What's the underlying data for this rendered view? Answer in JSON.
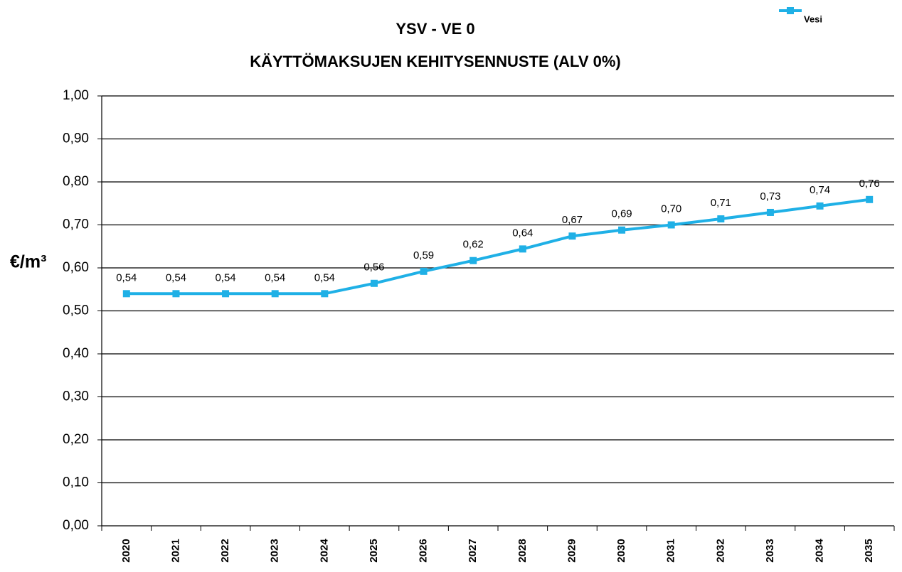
{
  "chart_data": {
    "type": "line",
    "title": "YSV - VE 0",
    "subtitle": "KÄYTTÖMAKSUJEN KEHITYSENNUSTE (ALV 0%)",
    "y_label": "€/m³",
    "categories": [
      "2020",
      "2021",
      "2022",
      "2023",
      "2024",
      "2025",
      "2026",
      "2027",
      "2028",
      "2029",
      "2030",
      "2031",
      "2032",
      "2033",
      "2034",
      "2035"
    ],
    "series": [
      {
        "name": "Vesi",
        "color": "#1fb0e6",
        "values": [
          0.54,
          0.54,
          0.54,
          0.54,
          0.54,
          0.564,
          0.592,
          0.617,
          0.644,
          0.674,
          0.688,
          0.7,
          0.714,
          0.729,
          0.744,
          0.759
        ],
        "value_labels": [
          "0,54",
          "0,54",
          "0,54",
          "0,54",
          "0,54",
          "0,56",
          "0,59",
          "0,62",
          "0,64",
          "0,67",
          "0,69",
          "0,70",
          "0,71",
          "0,73",
          "0,74",
          "0,76"
        ]
      }
    ],
    "ylim": [
      0,
      1
    ],
    "yticks": [
      {
        "value": 0,
        "label": "0,00"
      },
      {
        "value": 0.1,
        "label": "0,10"
      },
      {
        "value": 0.2,
        "label": "0,20"
      },
      {
        "value": 0.3,
        "label": "0,30"
      },
      {
        "value": 0.4,
        "label": "0,40"
      },
      {
        "value": 0.5,
        "label": "0,50"
      },
      {
        "value": 0.6,
        "label": "0,60"
      },
      {
        "value": 0.7,
        "label": "0,70"
      },
      {
        "value": 0.8,
        "label": "0,80"
      },
      {
        "value": 0.9,
        "label": "0,90"
      },
      {
        "value": 1,
        "label": "1,00"
      }
    ],
    "grid": true,
    "legend": "top-right"
  }
}
